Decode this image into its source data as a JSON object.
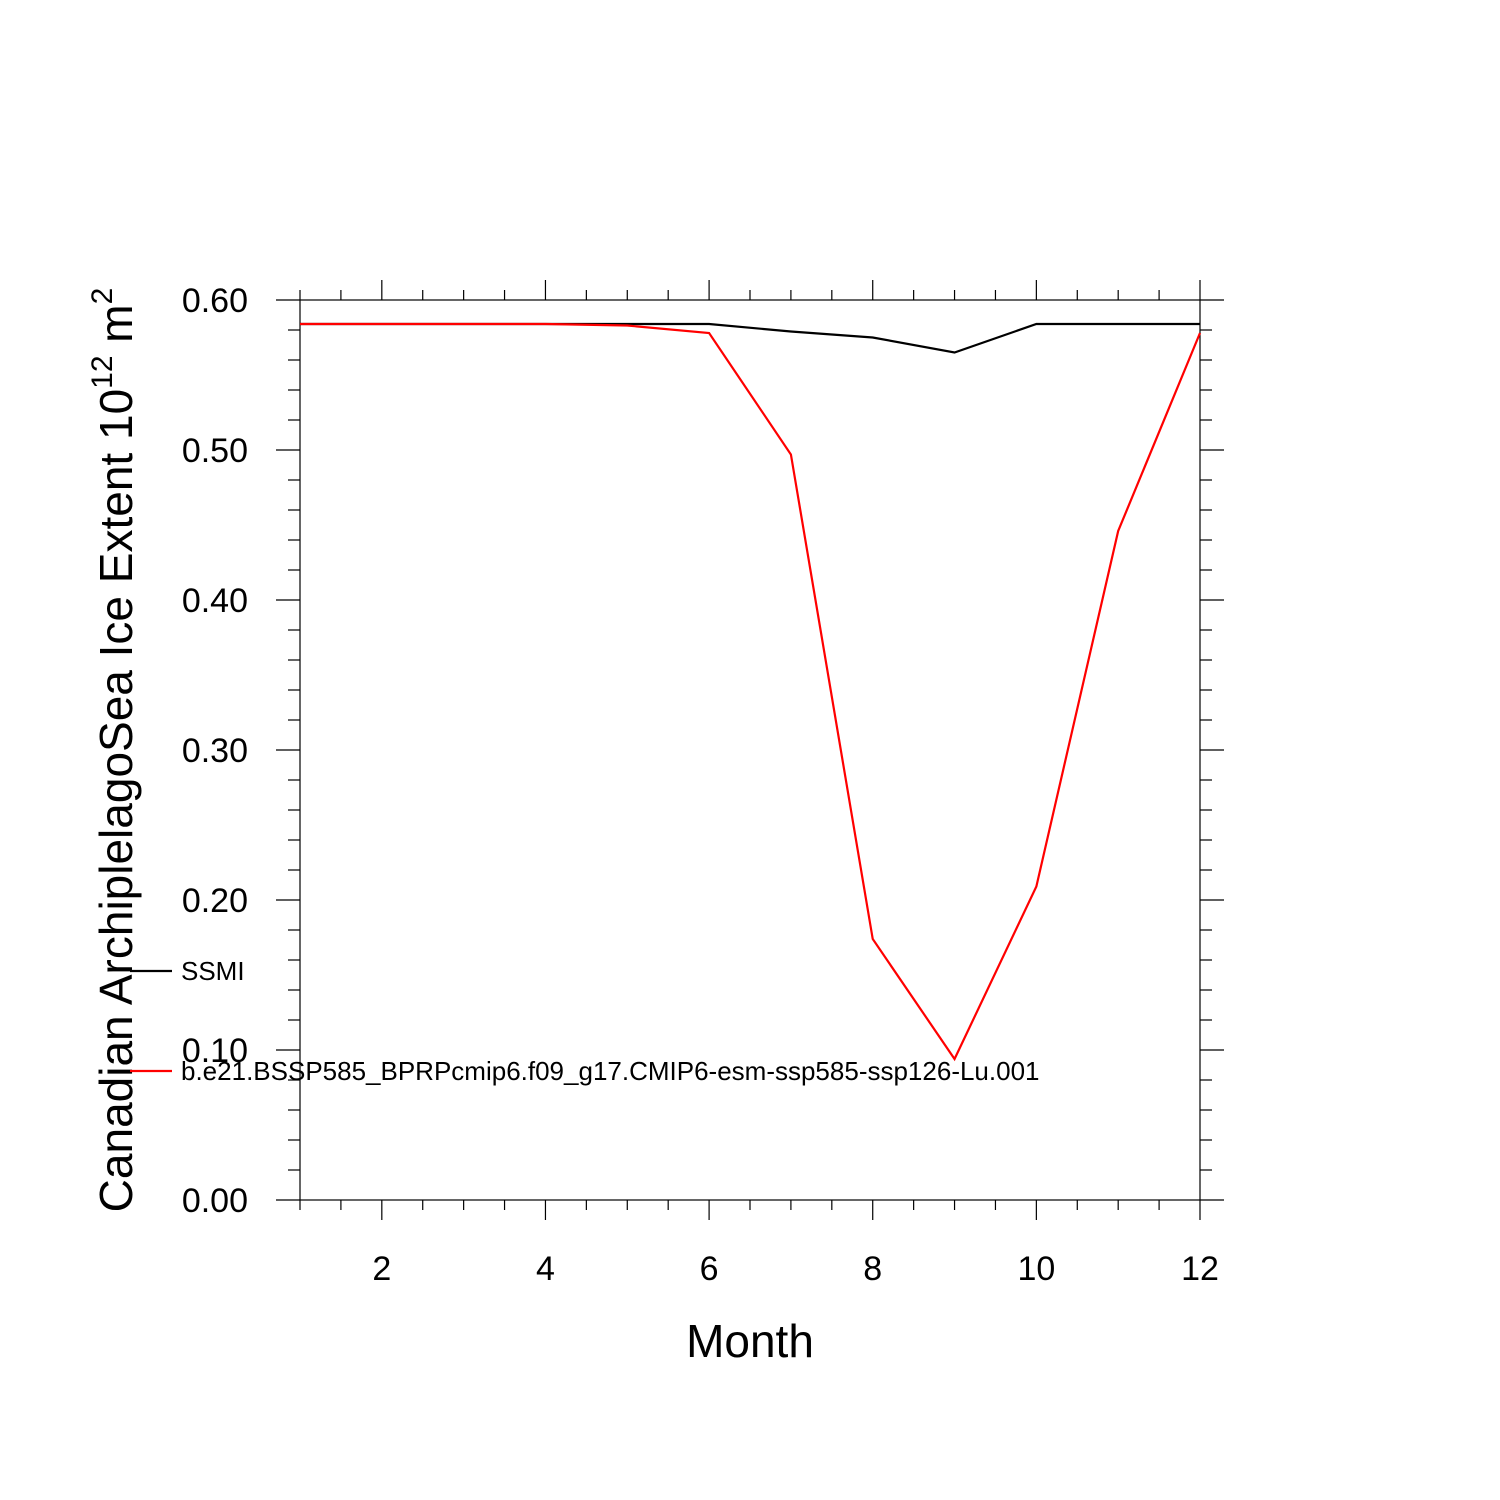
{
  "chart_data": {
    "type": "line",
    "xlabel": "Month",
    "ylabel": {
      "main": "Canadian ArchiplelagoSea Ice Extent 10",
      "exponent": "12",
      "unit": " m",
      "unit_exponent": "2"
    },
    "xlim": [
      1,
      12
    ],
    "ylim": [
      0,
      0.6
    ],
    "xticks": [
      {
        "value": 2,
        "label": "2"
      },
      {
        "value": 4,
        "label": "4"
      },
      {
        "value": 6,
        "label": "6"
      },
      {
        "value": 8,
        "label": "8"
      },
      {
        "value": 10,
        "label": "10"
      },
      {
        "value": 12,
        "label": "12"
      }
    ],
    "yticks": [
      {
        "value": 0.0,
        "label": "0.00"
      },
      {
        "value": 0.1,
        "label": "0.10"
      },
      {
        "value": 0.2,
        "label": "0.20"
      },
      {
        "value": 0.3,
        "label": "0.30"
      },
      {
        "value": 0.4,
        "label": "0.40"
      },
      {
        "value": 0.5,
        "label": "0.50"
      },
      {
        "value": 0.6,
        "label": "0.60"
      }
    ],
    "x": [
      1,
      2,
      3,
      4,
      5,
      6,
      7,
      8,
      9,
      10,
      11,
      12
    ],
    "series": [
      {
        "name": "SSMI",
        "color": "#000000",
        "values": [
          0.584,
          0.584,
          0.584,
          0.584,
          0.584,
          0.584,
          0.579,
          0.575,
          0.565,
          0.584,
          0.584,
          0.584
        ]
      },
      {
        "name": "b.e21.BSSP585_BPRPcmip6.f09_g17.CMIP6-esm-ssp585-ssp126-Lu.001",
        "color": "#ff0000",
        "values": [
          0.584,
          0.584,
          0.584,
          0.584,
          0.583,
          0.578,
          0.497,
          0.174,
          0.094,
          0.209,
          0.446,
          0.578
        ]
      }
    ],
    "grid": false,
    "legend_position": "lower-left"
  }
}
